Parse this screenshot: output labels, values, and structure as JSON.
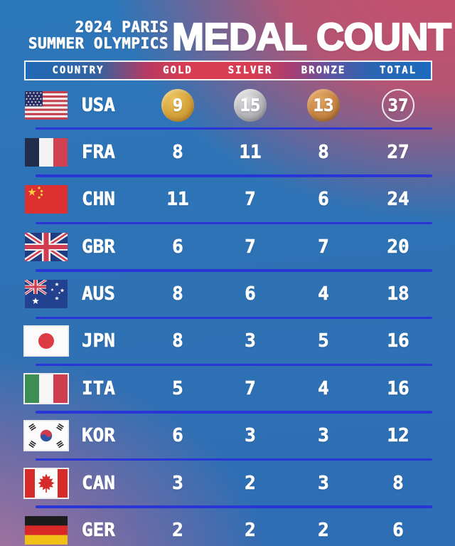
{
  "title_block": {
    "event_line1": "2024 PARIS",
    "event_line2": "SUMMER OLYMPICS",
    "main_title": "MEDAL COUNT"
  },
  "chart_data": {
    "type": "table",
    "title": "MEDAL COUNT",
    "subtitle": "2024 PARIS SUMMER OLYMPICS",
    "columns": [
      "COUNTRY",
      "GOLD",
      "SILVER",
      "BRONZE",
      "TOTAL"
    ],
    "rows": [
      {
        "country": "USA",
        "flag": "usa",
        "gold": 9,
        "silver": 15,
        "bronze": 13,
        "total": 37,
        "medal_icons": true
      },
      {
        "country": "FRA",
        "flag": "fra",
        "gold": 8,
        "silver": 11,
        "bronze": 8,
        "total": 27,
        "medal_icons": false
      },
      {
        "country": "CHN",
        "flag": "chn",
        "gold": 11,
        "silver": 7,
        "bronze": 6,
        "total": 24,
        "medal_icons": false
      },
      {
        "country": "GBR",
        "flag": "gbr",
        "gold": 6,
        "silver": 7,
        "bronze": 7,
        "total": 20,
        "medal_icons": false
      },
      {
        "country": "AUS",
        "flag": "aus",
        "gold": 8,
        "silver": 6,
        "bronze": 4,
        "total": 18,
        "medal_icons": false
      },
      {
        "country": "JPN",
        "flag": "jpn",
        "gold": 8,
        "silver": 3,
        "bronze": 5,
        "total": 16,
        "medal_icons": false
      },
      {
        "country": "ITA",
        "flag": "ita",
        "gold": 5,
        "silver": 7,
        "bronze": 4,
        "total": 16,
        "medal_icons": false
      },
      {
        "country": "KOR",
        "flag": "kor",
        "gold": 6,
        "silver": 3,
        "bronze": 3,
        "total": 12,
        "medal_icons": false
      },
      {
        "country": "CAN",
        "flag": "can",
        "gold": 3,
        "silver": 2,
        "bronze": 3,
        "total": 8,
        "medal_icons": false
      },
      {
        "country": "GER",
        "flag": "ger",
        "gold": 2,
        "silver": 2,
        "bronze": 2,
        "total": 6,
        "medal_icons": false
      }
    ]
  },
  "colors": {
    "separator_line": "#2a35d8",
    "background_blue": "#2e72b4",
    "background_red": "#c7506b",
    "background_mauve": "#b5749a",
    "header_bar_blue": "#1f6ab6",
    "header_bar_red": "#d83d52",
    "gold_medal": "#d8a83e",
    "silver_medal": "#bcbcc0",
    "bronze_medal": "#cd8b48"
  }
}
